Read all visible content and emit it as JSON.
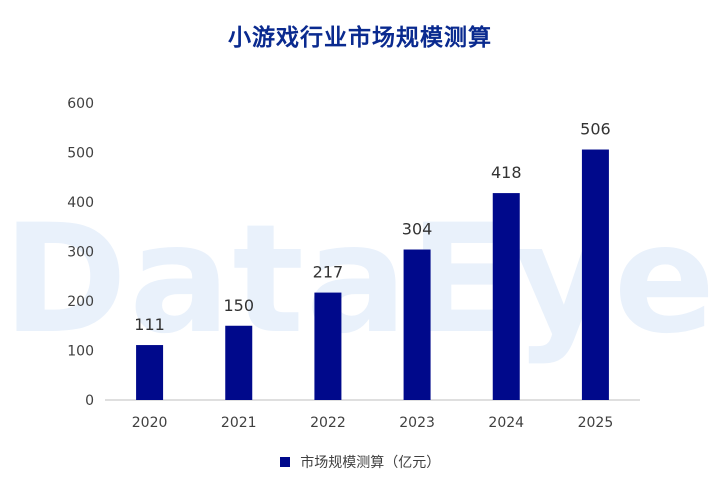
{
  "chart_data": {
    "type": "bar",
    "title": "小游戏行业市场规模测算",
    "watermark": "DataEye",
    "categories": [
      "2020",
      "2021",
      "2022",
      "2023",
      "2024",
      "2025"
    ],
    "series": [
      {
        "name": "市场规模测算（亿元）",
        "values": [
          111,
          150,
          217,
          304,
          418,
          506
        ],
        "color": "#00098b"
      }
    ],
    "ylim": [
      0,
      600
    ],
    "yticks": [
      0,
      100,
      200,
      300,
      400,
      500,
      600
    ],
    "grid": false,
    "legend_position": "bottom"
  }
}
